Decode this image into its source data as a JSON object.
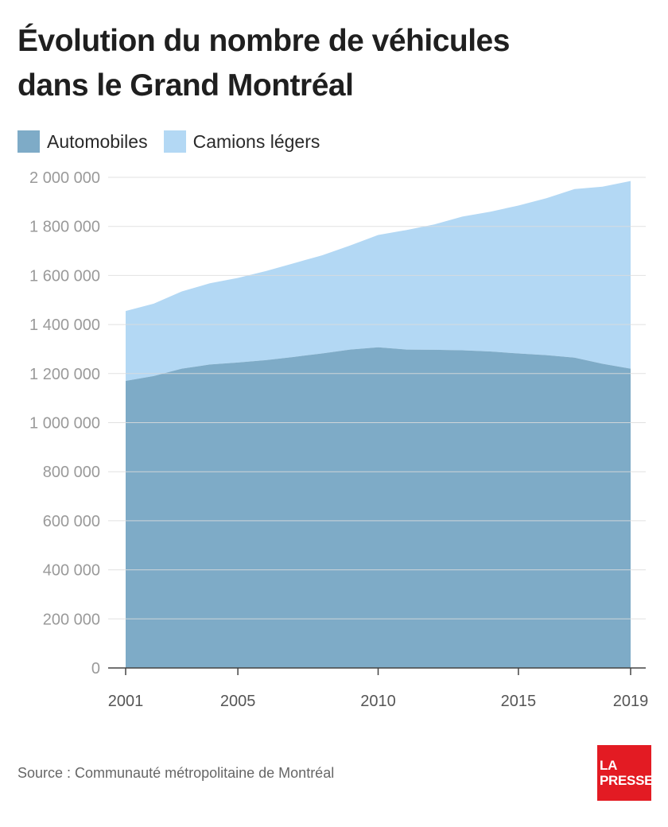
{
  "header": {
    "title_line1": "Évolution du nombre de véhicules",
    "title_line2": "dans le Grand Montréal"
  },
  "legend": {
    "items": [
      {
        "label": "Automobiles",
        "color": "#7eabc7"
      },
      {
        "label": "Camions légers",
        "color": "#b3d8f4"
      }
    ]
  },
  "footer": {
    "source": "Source : Communauté métropolitaine de Montréal",
    "logo_line1": "LA",
    "logo_line2": "PRESSE"
  },
  "chart_data": {
    "type": "area",
    "stacked": true,
    "title": "Évolution du nombre de véhicules dans le Grand Montréal",
    "xlabel": "",
    "ylabel": "",
    "x": [
      2001,
      2002,
      2003,
      2004,
      2005,
      2006,
      2007,
      2008,
      2009,
      2010,
      2011,
      2012,
      2013,
      2014,
      2015,
      2016,
      2017,
      2018,
      2019
    ],
    "xticks": [
      2001,
      2005,
      2010,
      2015,
      2019
    ],
    "xtick_labels": [
      "2001",
      "2005",
      "2010",
      "2015",
      "2019"
    ],
    "ylim": [
      0,
      2000000
    ],
    "yticks": [
      0,
      200000,
      400000,
      600000,
      800000,
      1000000,
      1200000,
      1400000,
      1600000,
      1800000,
      2000000
    ],
    "ytick_labels": [
      "0",
      "200 000",
      "400 000",
      "600 000",
      "800 000",
      "1 000 000",
      "1 200 000",
      "1 400 000",
      "1 600 000",
      "1 800 000",
      "2 000 000"
    ],
    "grid": true,
    "legend_position": "top-left",
    "series": [
      {
        "name": "Automobiles",
        "values": [
          1170000,
          1190000,
          1220000,
          1237000,
          1245000,
          1255000,
          1268000,
          1282000,
          1298000,
          1307000,
          1298000,
          1297000,
          1295000,
          1290000,
          1282000,
          1275000,
          1265000,
          1240000,
          1220000
        ]
      },
      {
        "name": "Camions légers",
        "total": [
          1455000,
          1485000,
          1535000,
          1568000,
          1590000,
          1618000,
          1650000,
          1682000,
          1722000,
          1765000,
          1785000,
          1808000,
          1840000,
          1860000,
          1885000,
          1915000,
          1952000,
          1962000,
          1985000
        ]
      }
    ],
    "colors": {
      "automobiles": "#7eabc7",
      "camions": "#b3d8f4",
      "grid": "#dcdcdc",
      "axis": "#444444",
      "tick_text": "#9a9a9a",
      "xtick_text": "#555555"
    }
  }
}
